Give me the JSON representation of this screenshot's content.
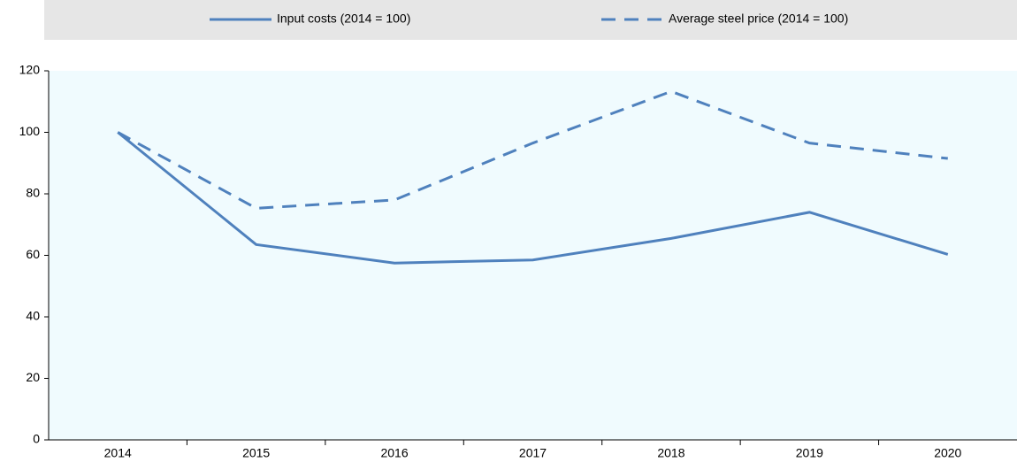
{
  "chart_data": {
    "type": "line",
    "categories": [
      "2014",
      "2015",
      "2016",
      "2017",
      "2018",
      "2019",
      "2020"
    ],
    "series": [
      {
        "name": "Input costs (2014 = 100)",
        "color": "#4f81bd",
        "dash": false,
        "values": [
          100,
          63.5,
          57.5,
          58.5,
          65.5,
          74,
          60.3
        ]
      },
      {
        "name": "Average steel price (2014 = 100)",
        "color": "#4f81bd",
        "dash": true,
        "values": [
          100,
          75.3,
          78,
          96.5,
          113.3,
          96.5,
          91.5
        ]
      }
    ],
    "ylim": [
      0,
      120
    ],
    "yticks": [
      0,
      20,
      40,
      60,
      80,
      100,
      120
    ],
    "grid": false,
    "legend": "top"
  }
}
